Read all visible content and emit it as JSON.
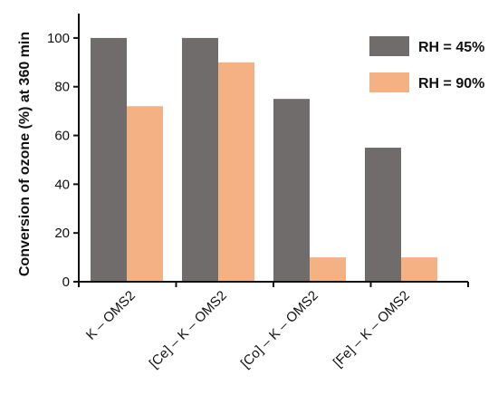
{
  "chart_data": {
    "type": "bar",
    "title": "",
    "ylabel": "Conversion of ozone (%) at 360 min",
    "xlabel": "",
    "ylim": [
      0,
      110
    ],
    "yticks": [
      0,
      20,
      40,
      60,
      80,
      100
    ],
    "categories": [
      "K – OMS2",
      "[Ce] – K – OMS2",
      "[Co] – K – OMS2",
      "[Fe] – K – OMS2"
    ],
    "series": [
      {
        "name": "RH = 45%",
        "color": "#706c6c",
        "values": [
          100,
          100,
          75,
          55
        ]
      },
      {
        "name": "RH = 90%",
        "color": "#f4b183",
        "values": [
          72,
          90,
          10,
          10
        ]
      }
    ],
    "legend_position": "top-right",
    "grid": false
  }
}
